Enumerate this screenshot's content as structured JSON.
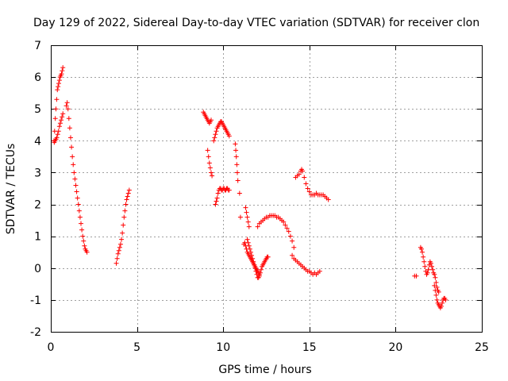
{
  "chart_data": {
    "type": "scatter",
    "title": "Day 129 of 2022, Sidereal Day-to-day VTEC variation (SDTVAR) for receiver clon",
    "xlabel": "GPS time / hours",
    "ylabel": "SDTVAR / TECUs",
    "xlim": [
      0,
      25
    ],
    "ylim": [
      -2,
      7
    ],
    "xticks": [
      0,
      5,
      10,
      15,
      20,
      25
    ],
    "yticks": [
      -2,
      -1,
      0,
      1,
      2,
      3,
      4,
      5,
      6,
      7
    ],
    "grid": true,
    "marker": "+",
    "colors": {
      "series": "#ff0000",
      "grid": "#a0a0a0",
      "axis": "#000000"
    },
    "series": [
      {
        "name": "SDTVAR",
        "segments": [
          {
            "x": [
              0.18,
              0.22,
              0.26,
              0.3,
              0.34,
              0.38,
              0.42,
              0.46,
              0.5,
              0.54,
              0.58,
              0.62,
              0.66,
              0.7
            ],
            "y": [
              4.0,
              4.3,
              4.7,
              5.0,
              5.3,
              5.6,
              5.7,
              5.8,
              5.9,
              6.0,
              6.05,
              6.1,
              6.2,
              6.3
            ]
          },
          {
            "x": [
              0.2,
              0.25,
              0.3,
              0.35,
              0.4,
              0.45,
              0.5,
              0.55,
              0.6,
              0.65,
              0.7
            ],
            "y": [
              3.95,
              4.0,
              4.05,
              4.1,
              4.2,
              4.3,
              4.45,
              4.55,
              4.65,
              4.75,
              4.85
            ]
          },
          {
            "x": [
              0.9,
              0.95,
              1.0,
              1.05,
              1.1,
              1.15,
              1.2,
              1.25,
              1.3,
              1.35,
              1.4,
              1.45,
              1.5,
              1.55,
              1.6,
              1.65,
              1.7,
              1.75,
              1.8,
              1.85,
              1.9,
              1.95,
              2.0,
              2.05,
              2.1
            ],
            "y": [
              5.1,
              5.2,
              5.0,
              4.7,
              4.4,
              4.1,
              3.8,
              3.5,
              3.25,
              3.0,
              2.8,
              2.6,
              2.4,
              2.2,
              2.0,
              1.8,
              1.6,
              1.4,
              1.2,
              1.0,
              0.85,
              0.7,
              0.6,
              0.55,
              0.5
            ]
          },
          {
            "x": [
              3.8,
              3.85,
              3.9,
              3.95,
              4.0,
              4.05,
              4.1,
              4.15,
              4.2,
              4.25,
              4.3,
              4.35,
              4.4,
              4.45,
              4.5,
              4.55
            ],
            "y": [
              0.15,
              0.3,
              0.45,
              0.55,
              0.65,
              0.75,
              0.9,
              1.1,
              1.35,
              1.6,
              1.8,
              2.0,
              2.15,
              2.25,
              2.35,
              2.45
            ]
          },
          {
            "x": [
              8.85,
              8.9,
              8.95,
              9.0,
              9.05,
              9.1,
              9.15,
              9.2,
              9.25,
              9.3
            ],
            "y": [
              4.9,
              4.85,
              4.8,
              4.75,
              4.7,
              4.65,
              4.6,
              4.55,
              4.6,
              4.65
            ]
          },
          {
            "x": [
              9.1,
              9.15,
              9.2,
              9.25,
              9.3,
              9.35
            ],
            "y": [
              3.7,
              3.5,
              3.3,
              3.15,
              3.0,
              2.9
            ]
          },
          {
            "x": [
              9.45,
              9.5,
              9.55,
              9.6,
              9.65,
              9.7,
              9.75,
              9.8,
              9.85,
              9.9,
              9.95,
              10.0,
              10.05,
              10.1,
              10.15,
              10.2,
              10.25,
              10.3,
              10.35
            ],
            "y": [
              4.0,
              4.1,
              4.2,
              4.3,
              4.4,
              4.45,
              4.5,
              4.55,
              4.6,
              4.6,
              4.55,
              4.5,
              4.45,
              4.4,
              4.35,
              4.3,
              4.25,
              4.2,
              4.15
            ]
          },
          {
            "x": [
              9.55,
              9.6,
              9.65,
              9.7,
              9.75,
              9.8,
              9.85,
              9.9,
              9.95,
              10.0,
              10.05,
              10.1,
              10.15,
              10.2,
              10.25,
              10.3,
              10.35
            ],
            "y": [
              2.0,
              2.1,
              2.2,
              2.35,
              2.45,
              2.5,
              2.5,
              2.45,
              2.45,
              2.5,
              2.5,
              2.45,
              2.45,
              2.5,
              2.5,
              2.45,
              2.45
            ]
          },
          {
            "x": [
              10.7,
              10.73,
              10.76,
              10.79,
              10.82,
              10.85
            ],
            "y": [
              3.9,
              3.7,
              3.5,
              3.25,
              3.0,
              2.75
            ]
          },
          {
            "x": [
              10.95,
              11.0,
              11.3,
              11.35,
              11.4,
              11.45,
              11.5
            ],
            "y": [
              2.35,
              1.6,
              1.9,
              1.75,
              1.6,
              1.45,
              1.3
            ]
          },
          {
            "x": [
              11.2,
              11.25,
              11.3,
              11.35,
              11.4,
              11.45,
              11.5,
              11.55,
              11.6,
              11.65,
              11.7,
              11.75,
              11.8,
              11.85,
              11.9,
              11.95,
              12.0,
              12.05,
              12.1
            ],
            "y": [
              0.75,
              0.8,
              0.7,
              0.6,
              0.5,
              0.45,
              0.4,
              0.35,
              0.3,
              0.25,
              0.2,
              0.15,
              0.1,
              0.05,
              0.0,
              -0.05,
              -0.1,
              -0.15,
              -0.2
            ]
          },
          {
            "x": [
              11.4,
              11.45,
              11.5,
              11.55,
              11.6,
              11.65,
              11.7,
              11.75,
              11.8,
              11.85,
              11.9,
              11.95,
              12.0,
              12.05,
              12.1,
              12.15,
              12.2,
              12.25,
              12.3,
              12.35,
              12.4,
              12.45,
              12.5,
              12.55,
              12.6
            ],
            "y": [
              0.9,
              0.8,
              0.7,
              0.6,
              0.5,
              0.4,
              0.3,
              0.2,
              0.1,
              0.0,
              -0.1,
              -0.2,
              -0.3,
              -0.3,
              -0.25,
              -0.15,
              -0.05,
              0.05,
              0.1,
              0.15,
              0.2,
              0.25,
              0.3,
              0.35,
              0.35
            ]
          },
          {
            "x": [
              12.0,
              12.1,
              12.2,
              12.3,
              12.4,
              12.5,
              12.6,
              12.7,
              12.8,
              12.9,
              13.0,
              13.1,
              13.2,
              13.3,
              13.4,
              13.5,
              13.6,
              13.7,
              13.8,
              13.9,
              14.0,
              14.1
            ],
            "y": [
              1.3,
              1.4,
              1.45,
              1.5,
              1.55,
              1.6,
              1.6,
              1.65,
              1.65,
              1.65,
              1.65,
              1.6,
              1.6,
              1.55,
              1.5,
              1.45,
              1.35,
              1.25,
              1.15,
              1.0,
              0.85,
              0.65
            ]
          },
          {
            "x": [
              14.0,
              14.1,
              14.2,
              14.3,
              14.4,
              14.5,
              14.6,
              14.7,
              14.8,
              14.9,
              15.0,
              15.1,
              15.2,
              15.3,
              15.4,
              15.5,
              15.6
            ],
            "y": [
              0.4,
              0.3,
              0.25,
              0.2,
              0.15,
              0.1,
              0.05,
              0.0,
              -0.05,
              -0.1,
              -0.1,
              -0.15,
              -0.2,
              -0.15,
              -0.2,
              -0.15,
              -0.1
            ]
          },
          {
            "x": [
              14.2,
              14.3,
              14.4,
              14.5,
              14.55,
              14.6,
              14.7,
              14.8,
              14.9,
              15.0,
              15.1,
              15.2,
              15.3,
              15.4,
              15.5,
              15.6,
              15.7,
              15.8,
              15.9,
              16.0,
              16.1
            ],
            "y": [
              2.85,
              2.9,
              2.95,
              3.05,
              3.1,
              3.05,
              2.85,
              2.65,
              2.5,
              2.4,
              2.3,
              2.3,
              2.3,
              2.35,
              2.3,
              2.3,
              2.3,
              2.3,
              2.25,
              2.2,
              2.15
            ]
          },
          {
            "x": [
              21.1,
              21.2
            ],
            "y": [
              -0.25,
              -0.25
            ]
          },
          {
            "x": [
              21.45,
              21.5,
              21.55,
              21.6,
              21.65,
              21.7,
              21.75,
              21.8,
              21.85,
              21.9,
              21.95,
              22.0,
              22.05,
              22.1,
              22.15,
              22.2,
              22.25,
              22.3,
              22.35,
              22.4,
              22.45,
              22.5
            ],
            "y": [
              0.65,
              0.6,
              0.5,
              0.35,
              0.2,
              0.05,
              -0.1,
              -0.2,
              -0.15,
              -0.05,
              0.1,
              0.2,
              0.15,
              0.05,
              -0.05,
              -0.15,
              -0.2,
              -0.3,
              -0.45,
              -0.6,
              -0.7,
              -0.75
            ]
          },
          {
            "x": [
              22.25,
              22.3,
              22.35,
              22.4,
              22.45,
              22.5,
              22.55,
              22.6,
              22.65,
              22.7,
              22.75,
              22.8,
              22.85,
              22.9
            ],
            "y": [
              -0.55,
              -0.7,
              -0.85,
              -1.0,
              -1.1,
              -1.15,
              -1.2,
              -1.25,
              -1.2,
              -1.1,
              -1.0,
              -0.95,
              -0.95,
              -1.0
            ]
          }
        ]
      }
    ]
  }
}
